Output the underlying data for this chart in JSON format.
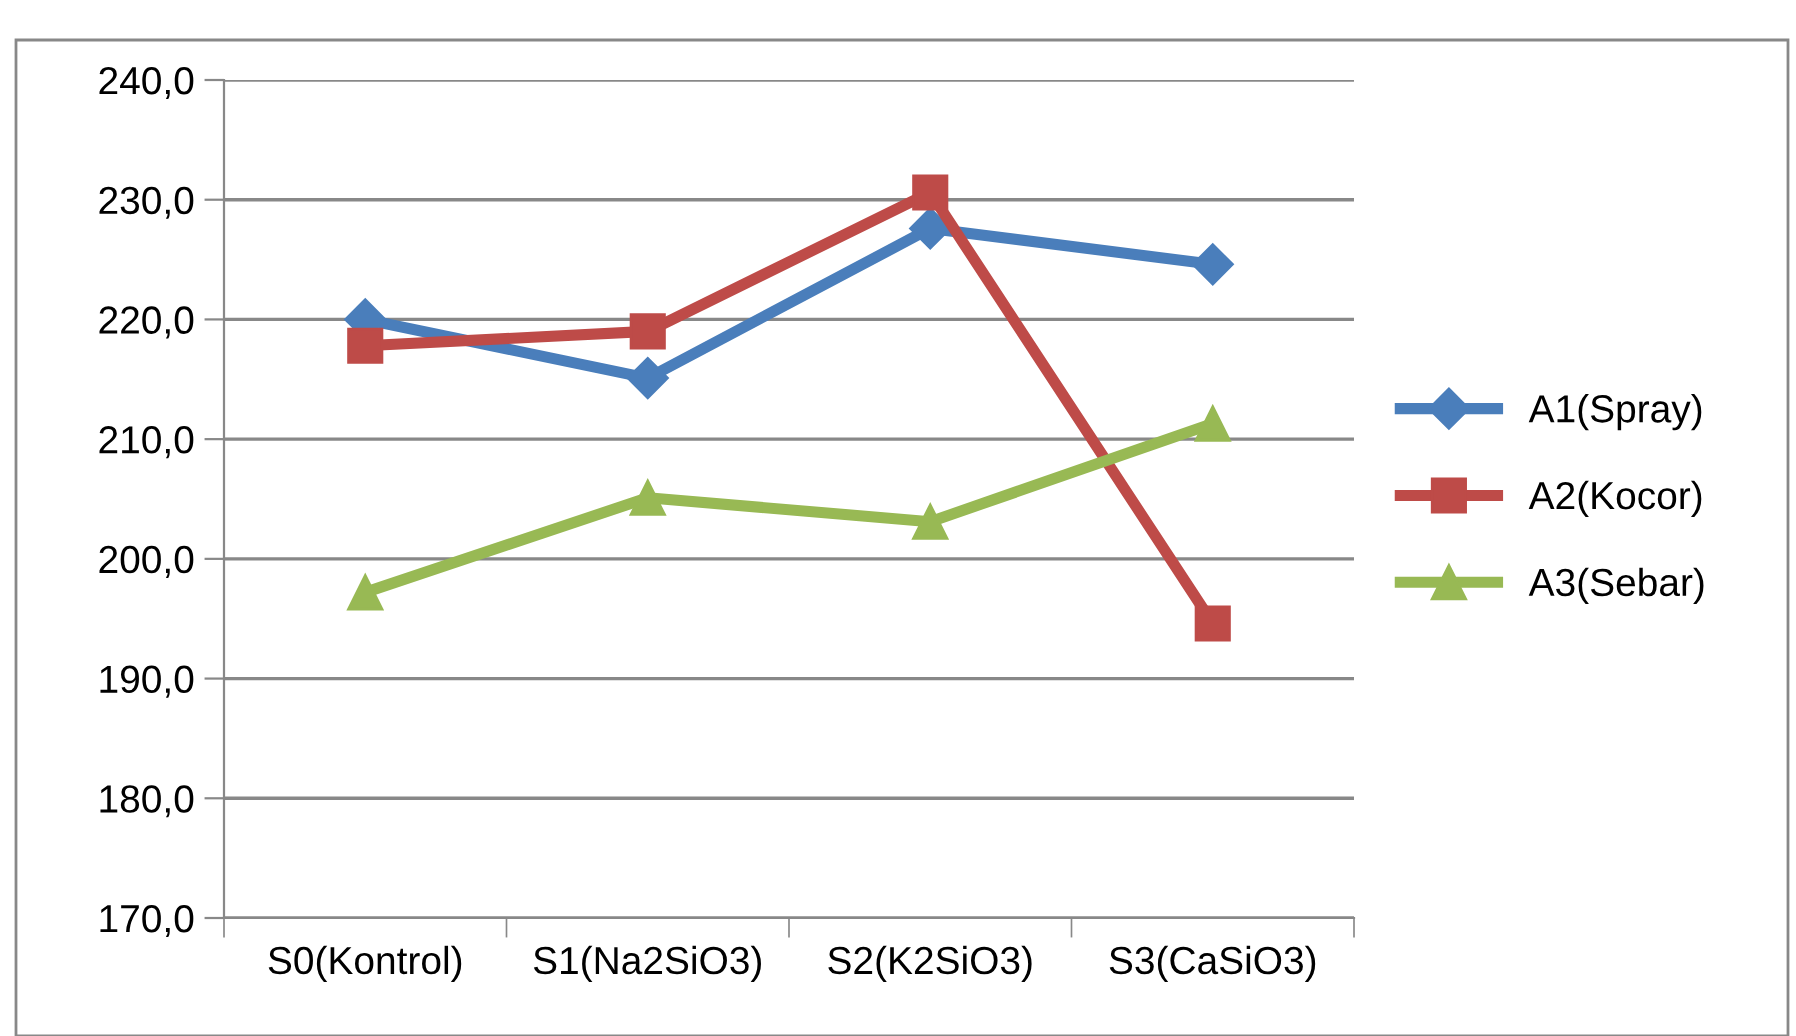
{
  "chart_data": {
    "type": "line",
    "categories": [
      "S0(Kontrol)",
      "S1(Na2SiO3)",
      "S2(K2SiO3)",
      "S3(CaSiO3)"
    ],
    "series": [
      {
        "name": "A1(Spray)",
        "color": "#4a7ebb",
        "marker": "diamond",
        "values": [
          220.0,
          215.1,
          227.6,
          224.6
        ]
      },
      {
        "name": "A2(Kocor)",
        "color": "#be4b48",
        "marker": "square",
        "values": [
          217.8,
          219.0,
          230.6,
          194.6
        ]
      },
      {
        "name": "A3(Sebar)",
        "color": "#98b954",
        "marker": "triangle",
        "values": [
          197.2,
          205.1,
          203.1,
          211.3
        ]
      }
    ],
    "ylim": [
      170,
      240
    ],
    "yticks": [
      {
        "value": 170,
        "label": "170,0"
      },
      {
        "value": 180,
        "label": "180,0"
      },
      {
        "value": 190,
        "label": "190,0"
      },
      {
        "value": 200,
        "label": "200,0"
      },
      {
        "value": 210,
        "label": "210,0"
      },
      {
        "value": 220,
        "label": "220,0"
      },
      {
        "value": 230,
        "label": "230,0"
      },
      {
        "value": 240,
        "label": "240,0"
      }
    ],
    "grid": "y",
    "legend": "right",
    "line_style": "solid"
  }
}
